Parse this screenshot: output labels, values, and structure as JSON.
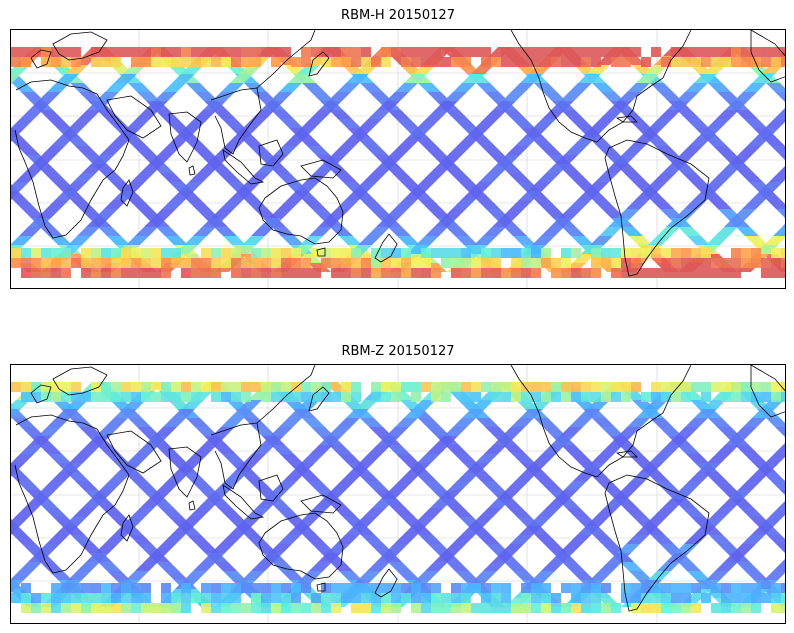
{
  "panels": [
    {
      "title": "RBM-H 20150127",
      "colormap": "jet",
      "base_color": "#5e63ee",
      "high_latitude_colors": [
        "#48b8ff",
        "#65f0d6",
        "#f2f25c",
        "#ff9a4a",
        "#e85a5a"
      ]
    },
    {
      "title": "RBM-Z 20150127",
      "colormap": "jet",
      "base_color": "#5e63ee",
      "high_latitude_colors": [
        "#48b8ff",
        "#65f0d6",
        "#f2f25c"
      ]
    }
  ],
  "colors": {
    "coastline": "#000000",
    "gridline": "#cfcfcf",
    "frame": "#000000"
  }
}
